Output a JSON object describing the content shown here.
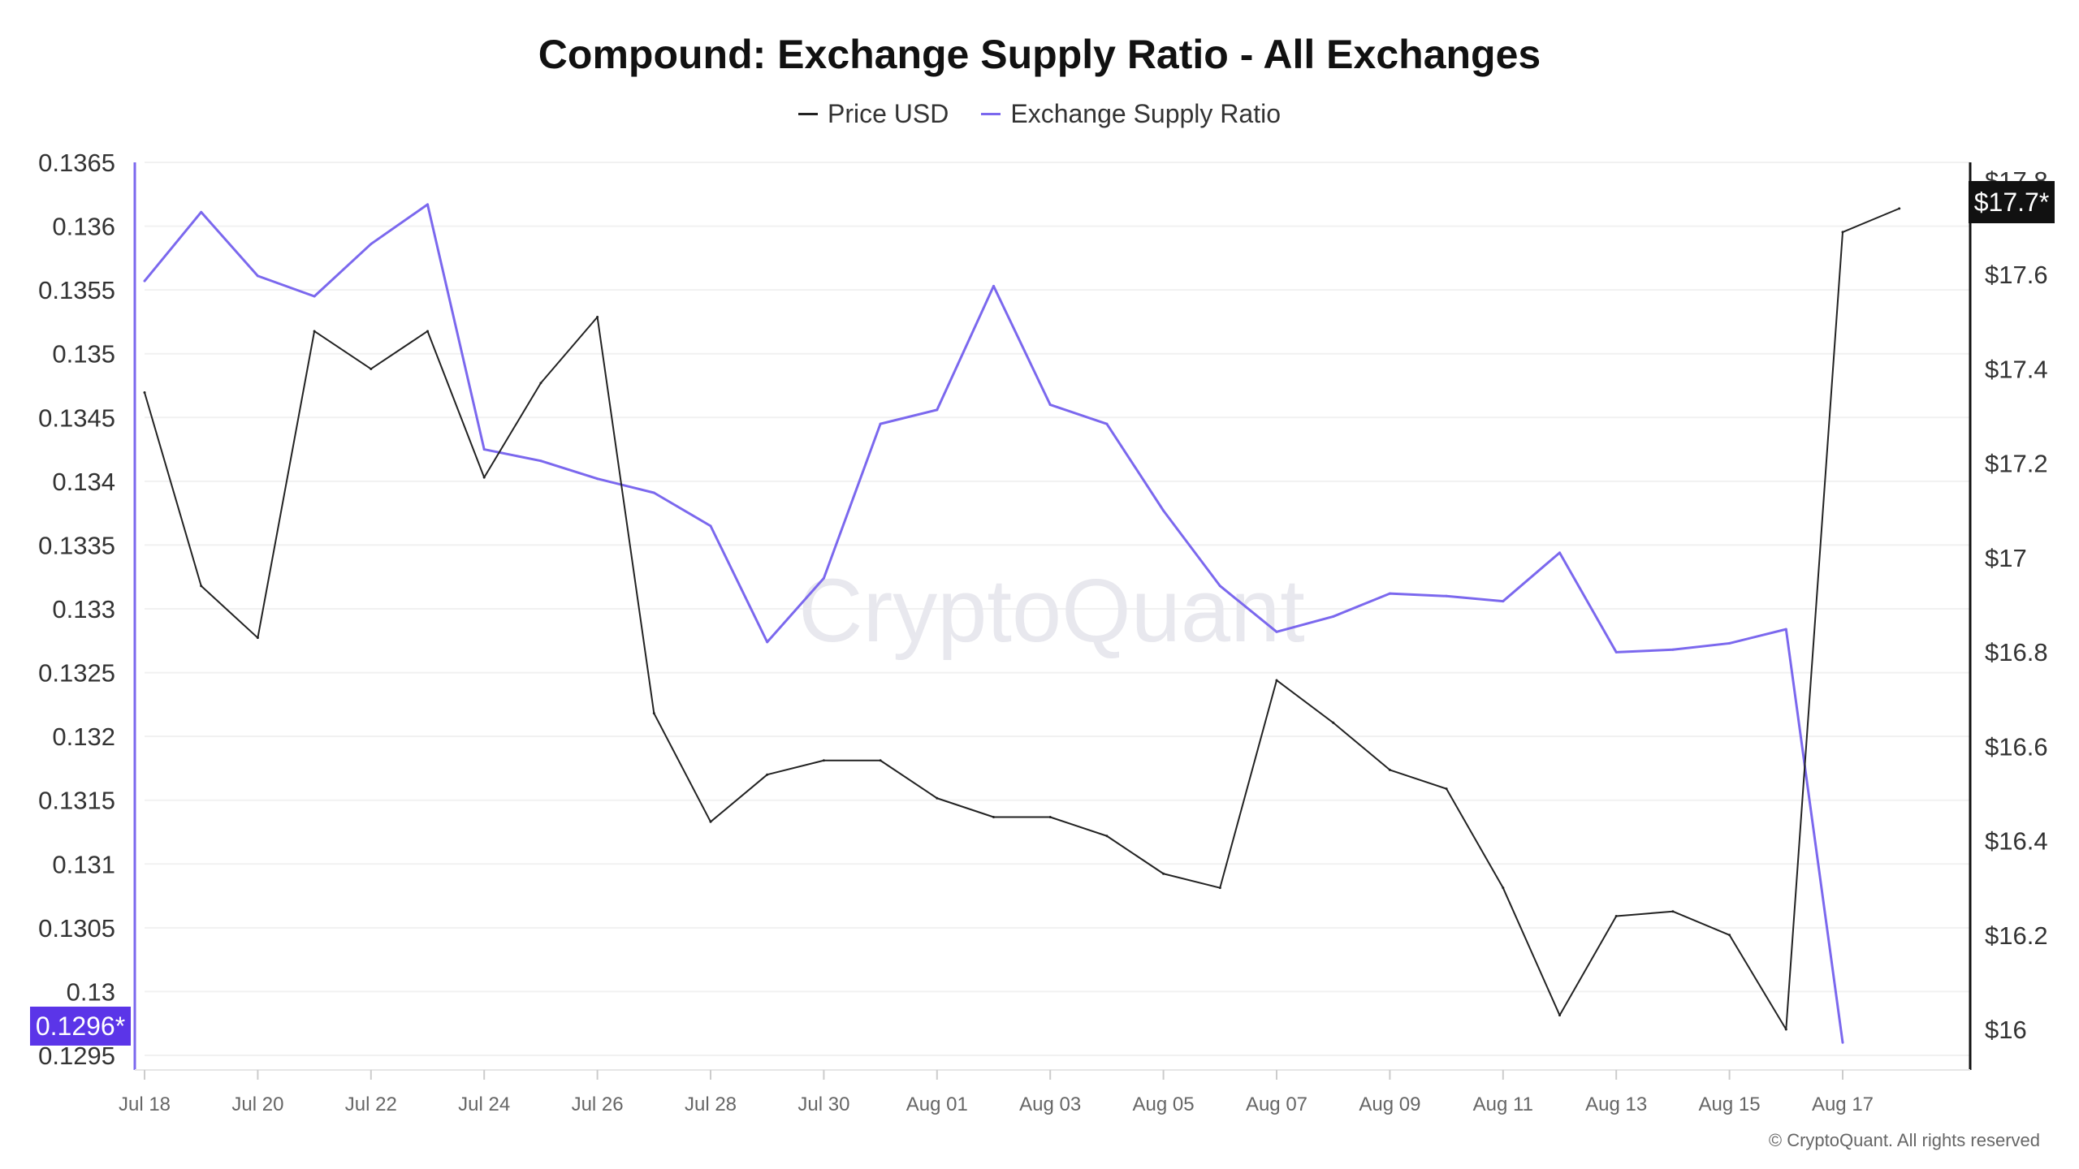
{
  "chart_data": {
    "type": "line",
    "title": "Compound: Exchange Supply Ratio - All Exchanges",
    "legend": [
      "Price USD",
      "Exchange Supply Ratio"
    ],
    "legend_placement": "top-center",
    "x": [
      "Jul 18",
      "Jul 19",
      "Jul 20",
      "Jul 21",
      "Jul 22",
      "Jul 23",
      "Jul 24",
      "Jul 25",
      "Jul 26",
      "Jul 27",
      "Jul 28",
      "Jul 29",
      "Jul 30",
      "Jul 31",
      "Aug 01",
      "Aug 02",
      "Aug 03",
      "Aug 04",
      "Aug 05",
      "Aug 06",
      "Aug 07",
      "Aug 08",
      "Aug 09",
      "Aug 10",
      "Aug 11",
      "Aug 12",
      "Aug 13",
      "Aug 14",
      "Aug 15",
      "Aug 16",
      "Aug 17",
      "Aug 18"
    ],
    "x_tick_labels": [
      "Jul 18",
      "Jul 20",
      "Jul 22",
      "Jul 24",
      "Jul 26",
      "Jul 28",
      "Jul 30",
      "Aug 01",
      "Aug 03",
      "Aug 05",
      "Aug 07",
      "Aug 09",
      "Aug 11",
      "Aug 13",
      "Aug 15",
      "Aug 17"
    ],
    "series": [
      {
        "name": "Exchange Supply Ratio",
        "axis": "left",
        "color": "#7b68ee",
        "values": [
          0.13557,
          0.13611,
          0.13561,
          0.13545,
          0.13586,
          0.13617,
          0.13425,
          0.13416,
          0.13402,
          0.13391,
          0.13365,
          0.13274,
          0.13324,
          0.13445,
          0.13456,
          0.13553,
          0.1346,
          0.13445,
          0.13377,
          0.13318,
          0.13282,
          0.13294,
          0.13312,
          0.1331,
          0.13306,
          0.13344,
          0.13266,
          0.13268,
          0.13273,
          0.13284,
          0.1296,
          null
        ]
      },
      {
        "name": "Price USD",
        "axis": "right",
        "color": "#222222",
        "values": [
          17.35,
          16.94,
          16.83,
          17.48,
          17.4,
          17.48,
          17.17,
          17.37,
          17.51,
          16.67,
          16.44,
          16.54,
          16.57,
          16.57,
          16.49,
          16.45,
          16.45,
          16.41,
          16.33,
          16.3,
          16.74,
          16.65,
          16.55,
          16.51,
          16.3,
          16.03,
          16.24,
          16.25,
          16.2,
          16.0,
          17.69,
          17.74
        ]
      }
    ],
    "y_left": {
      "ticks": [
        "0.1365",
        "0.136",
        "0.1355",
        "0.135",
        "0.1345",
        "0.134",
        "0.1335",
        "0.133",
        "0.1325",
        "0.132",
        "0.1315",
        "0.131",
        "0.1305",
        "0.13",
        "0.1295"
      ],
      "range": [
        0.1295,
        0.1365
      ]
    },
    "y_right": {
      "ticks": [
        "$17.8",
        "$17.6",
        "$17.4",
        "$17.2",
        "$17",
        "$16.8",
        "$16.6",
        "$16.4",
        "$16.2",
        "$16"
      ],
      "range": [
        16.0,
        17.8
      ]
    },
    "grid": true,
    "current_left_label": "0.1296*",
    "current_right_label": "$17.7*",
    "watermark": "CryptoQuant",
    "copyright": "© CryptoQuant. All rights reserved"
  }
}
